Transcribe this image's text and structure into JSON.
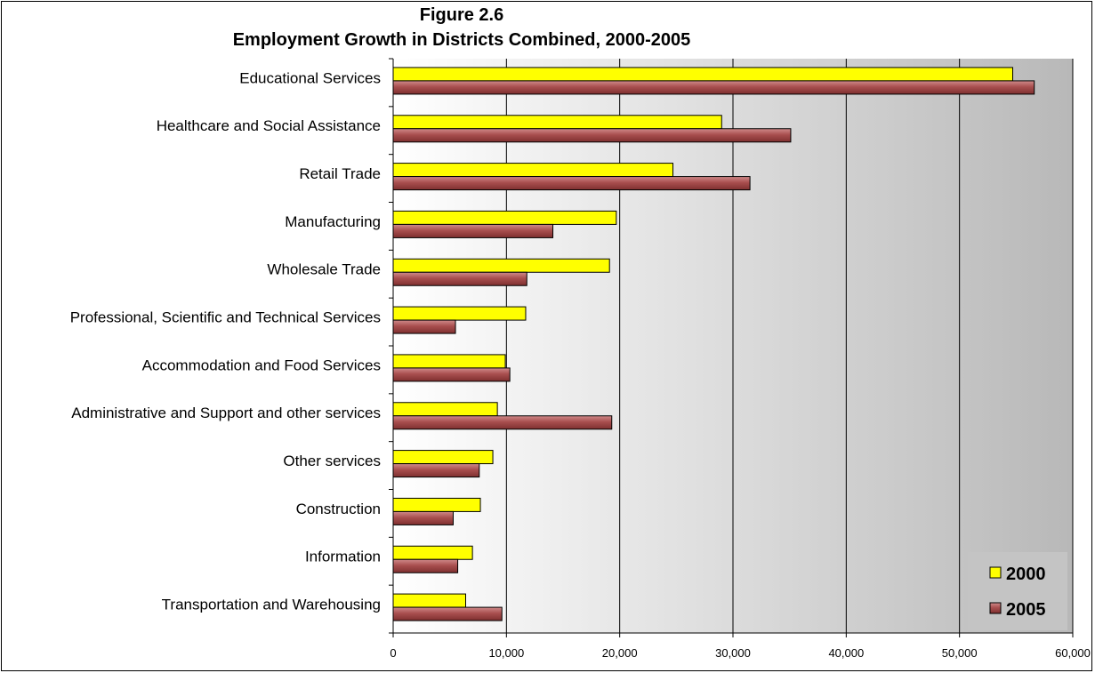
{
  "chart_data": {
    "type": "bar",
    "orientation": "horizontal",
    "title": "Figure 2.6",
    "subtitle": "Employment Growth in Districts Combined, 2000-2005",
    "xlabel": "",
    "ylabel": "",
    "xlim": [
      0,
      60000
    ],
    "x_ticks": [
      "0",
      "10,000",
      "20,000",
      "30,000",
      "40,000",
      "50,000",
      "60,000"
    ],
    "grid": "vertical",
    "legend_position": "bottom-right",
    "categories": [
      "Educational Services",
      "Healthcare and Social Assistance",
      "Retail Trade",
      "Manufacturing",
      "Wholesale Trade",
      "Professional, Scientific and Technical Services",
      "Accommodation and Food Services",
      "Administrative and Support and other services",
      "Other services",
      "Construction",
      "Information",
      "Transportation and Warehousing"
    ],
    "series": [
      {
        "name": "2000",
        "color": "#ffff00",
        "values": [
          54700,
          29000,
          24700,
          19700,
          19100,
          11700,
          9900,
          9200,
          8800,
          7700,
          7000,
          6400
        ]
      },
      {
        "name": "2005",
        "color": "#b05a5a",
        "values": [
          56600,
          35100,
          31500,
          14100,
          11800,
          5500,
          10300,
          19300,
          7600,
          5300,
          5700,
          9600
        ]
      }
    ]
  }
}
